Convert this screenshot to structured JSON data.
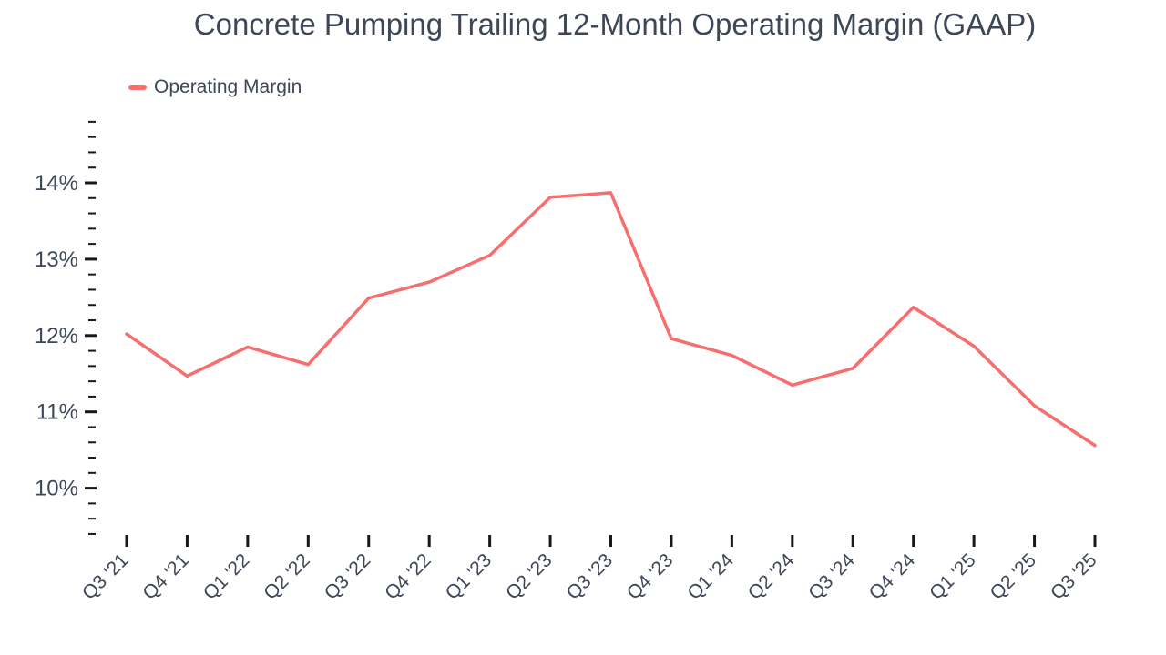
{
  "title": "Concrete Pumping Trailing 12-Month Operating Margin (GAAP)",
  "legend": {
    "label": "Operating Margin"
  },
  "colors": {
    "line": "#F76E6E",
    "text": "#3E4757",
    "tick": "#15181D",
    "background": "#FFFFFF"
  },
  "chart_data": {
    "type": "line",
    "title": "Concrete Pumping Trailing 12-Month Operating Margin (GAAP)",
    "categories": [
      "Q3 '21",
      "Q4 '21",
      "Q1 '22",
      "Q2 '22",
      "Q3 '22",
      "Q4 '22",
      "Q1 '23",
      "Q2 '23",
      "Q3 '23",
      "Q4 '23",
      "Q1 '24",
      "Q2 '24",
      "Q3 '24",
      "Q4 '24",
      "Q1 '25",
      "Q2 '25",
      "Q3 '25"
    ],
    "series": [
      {
        "name": "Operating Margin",
        "unit": "%",
        "values": [
          12.02,
          11.47,
          11.85,
          11.62,
          12.49,
          12.7,
          13.05,
          13.81,
          13.87,
          11.96,
          11.74,
          11.35,
          11.57,
          12.37,
          11.86,
          11.08,
          10.56
        ]
      }
    ],
    "xlabel": "",
    "ylabel": "",
    "y_tick_format": "percent",
    "y_major_ticks": [
      10,
      11,
      12,
      13,
      14
    ],
    "y_minor_step": 0.2,
    "ylim": [
      9.4,
      14.8
    ],
    "grid": false,
    "legend_position": "top-left",
    "x_label_rotation": -45
  }
}
